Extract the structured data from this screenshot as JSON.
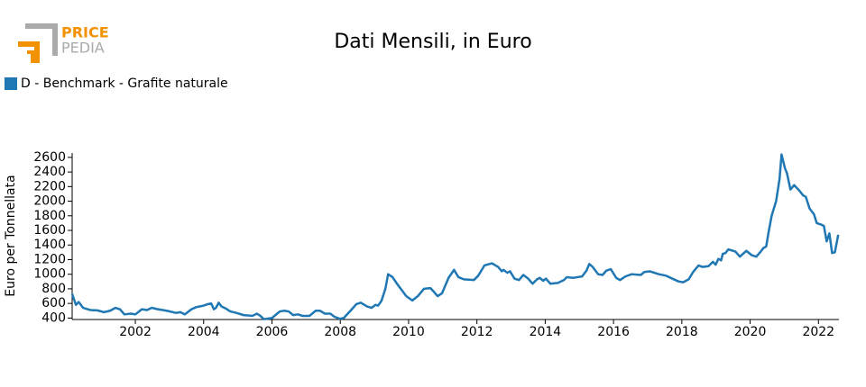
{
  "logo": {
    "line1": "PRICE",
    "line2": "PEDIA"
  },
  "chart_data": {
    "type": "line",
    "title": "Dati Mensili, in Euro",
    "y_label": "Euro per Tonnellata",
    "xlim": [
      2000.15,
      2022.6
    ],
    "xticks": [
      2002,
      2004,
      2006,
      2008,
      2010,
      2012,
      2014,
      2016,
      2018,
      2020,
      2022
    ],
    "ylim": [
      380,
      2660
    ],
    "yticks": [
      400,
      600,
      800,
      1000,
      1200,
      1400,
      1600,
      1800,
      2000,
      2200,
      2400,
      2600
    ],
    "legend": "top-left",
    "x": [
      2000.15,
      2000.26,
      2000.34,
      2000.47,
      2000.68,
      2000.89,
      2001.08,
      2001.26,
      2001.42,
      2001.55,
      2001.68,
      2001.87,
      2002.0,
      2002.19,
      2002.34,
      2002.48,
      2002.66,
      2002.92,
      2003.19,
      2003.32,
      2003.45,
      2003.64,
      2003.79,
      2003.9,
      2004.0,
      2004.12,
      2004.22,
      2004.3,
      2004.36,
      2004.44,
      2004.52,
      2004.65,
      2004.78,
      2004.96,
      2005.17,
      2005.43,
      2005.56,
      2005.66,
      2005.76,
      2006.0,
      2006.1,
      2006.23,
      2006.36,
      2006.49,
      2006.62,
      2006.76,
      2006.89,
      2007.1,
      2007.28,
      2007.41,
      2007.55,
      2007.71,
      2007.82,
      2007.98,
      2008.1,
      2008.3,
      2008.47,
      2008.6,
      2008.78,
      2008.92,
      2009.03,
      2009.11,
      2009.21,
      2009.32,
      2009.4,
      2009.53,
      2009.66,
      2009.93,
      2010.11,
      2010.27,
      2010.45,
      2010.64,
      2010.72,
      2010.85,
      2010.98,
      2011.17,
      2011.33,
      2011.46,
      2011.62,
      2011.91,
      2012.04,
      2012.22,
      2012.44,
      2012.62,
      2012.73,
      2012.78,
      2012.89,
      2012.97,
      2013.1,
      2013.23,
      2013.36,
      2013.5,
      2013.63,
      2013.76,
      2013.84,
      2013.94,
      2014.02,
      2014.15,
      2014.37,
      2014.55,
      2014.63,
      2014.81,
      2014.95,
      2015.08,
      2015.21,
      2015.29,
      2015.39,
      2015.55,
      2015.68,
      2015.79,
      2015.92,
      2016.08,
      2016.19,
      2016.35,
      2016.53,
      2016.8,
      2016.9,
      2017.06,
      2017.33,
      2017.54,
      2017.72,
      2017.91,
      2018.04,
      2018.2,
      2018.33,
      2018.49,
      2018.6,
      2018.78,
      2018.91,
      2018.99,
      2019.07,
      2019.15,
      2019.2,
      2019.28,
      2019.36,
      2019.57,
      2019.7,
      2019.89,
      2020.05,
      2020.18,
      2020.31,
      2020.39,
      2020.47,
      2020.55,
      2020.63,
      2020.76,
      2020.86,
      2020.92,
      2021.02,
      2021.08,
      2021.18,
      2021.29,
      2021.45,
      2021.55,
      2021.63,
      2021.74,
      2021.87,
      2021.95,
      2022.08,
      2022.16,
      2022.24,
      2022.32,
      2022.4,
      2022.48,
      2022.58
    ],
    "series": [
      {
        "name": "D - Benchmark - Grafite naturale",
        "color": "#1f77b4",
        "values": [
          730,
          580,
          620,
          540,
          510,
          505,
          480,
          500,
          540,
          520,
          450,
          460,
          450,
          520,
          510,
          540,
          520,
          500,
          470,
          480,
          450,
          520,
          550,
          560,
          570,
          590,
          600,
          520,
          540,
          610,
          560,
          530,
          490,
          470,
          440,
          430,
          460,
          430,
          385,
          400,
          440,
          490,
          500,
          490,
          440,
          450,
          430,
          430,
          500,
          500,
          460,
          460,
          420,
          390,
          400,
          500,
          590,
          610,
          560,
          540,
          580,
          570,
          640,
          800,
          1000,
          960,
          870,
          700,
          640,
          700,
          800,
          810,
          770,
          700,
          740,
          950,
          1060,
          960,
          930,
          920,
          980,
          1120,
          1150,
          1100,
          1040,
          1060,
          1020,
          1040,
          940,
          920,
          990,
          940,
          870,
          930,
          950,
          910,
          940,
          870,
          880,
          920,
          960,
          950,
          960,
          970,
          1050,
          1140,
          1100,
          1000,
          990,
          1050,
          1070,
          950,
          920,
          970,
          1000,
          990,
          1030,
          1040,
          1000,
          980,
          940,
          900,
          890,
          930,
          1030,
          1120,
          1100,
          1110,
          1170,
          1130,
          1210,
          1190,
          1280,
          1290,
          1340,
          1310,
          1240,
          1320,
          1260,
          1240,
          1310,
          1360,
          1380,
          1600,
          1800,
          2000,
          2300,
          2640,
          2450,
          2380,
          2160,
          2220,
          2140,
          2080,
          2060,
          1900,
          1820,
          1700,
          1680,
          1660,
          1450,
          1560,
          1290,
          1300,
          1540
        ]
      }
    ]
  }
}
